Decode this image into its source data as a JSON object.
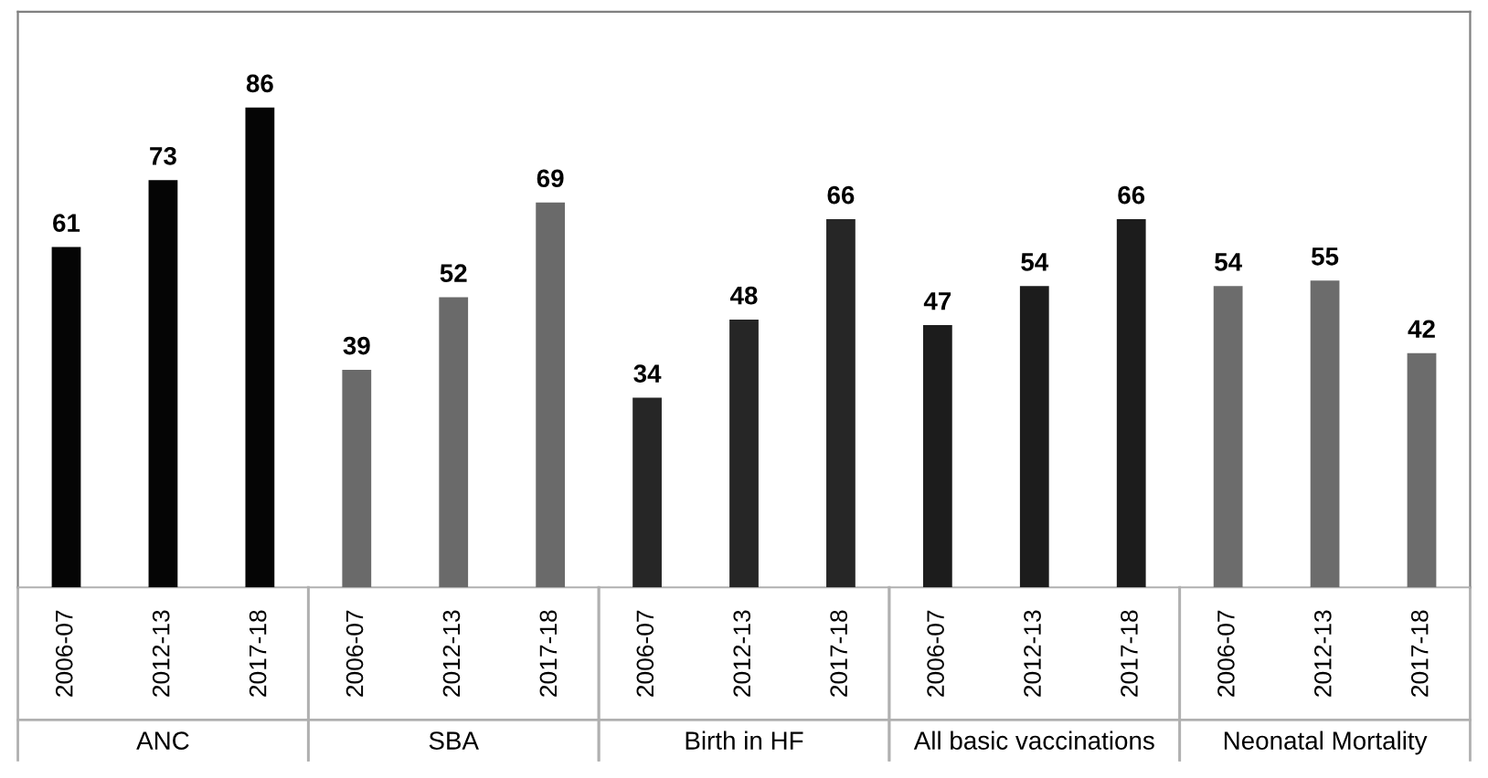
{
  "chart_data": {
    "type": "bar",
    "categories": [
      "2006-07",
      "2012-13",
      "2017-18",
      "2006-07",
      "2012-13",
      "2017-18",
      "2006-07",
      "2012-13",
      "2017-18",
      "2006-07",
      "2012-13",
      "2017-18",
      "2006-07",
      "2012-13",
      "2017-18"
    ],
    "values": [
      61,
      73,
      86,
      39,
      52,
      69,
      34,
      48,
      66,
      47,
      54,
      66,
      54,
      55,
      42
    ],
    "colors": [
      "#050505",
      "#050505",
      "#050505",
      "#6a6a6a",
      "#6a6a6a",
      "#6a6a6a",
      "#262626",
      "#262626",
      "#262626",
      "#1c1c1c",
      "#1c1c1c",
      "#1c1c1c",
      "#6c6c6c",
      "#6c6c6c",
      "#6c6c6c"
    ],
    "annotations": [
      "ANC",
      "SBA",
      "Birth in HF",
      "All basic vaccinations",
      "Neonatal Mortality"
    ],
    "data_labels": true,
    "grid": false,
    "legend": false
  }
}
